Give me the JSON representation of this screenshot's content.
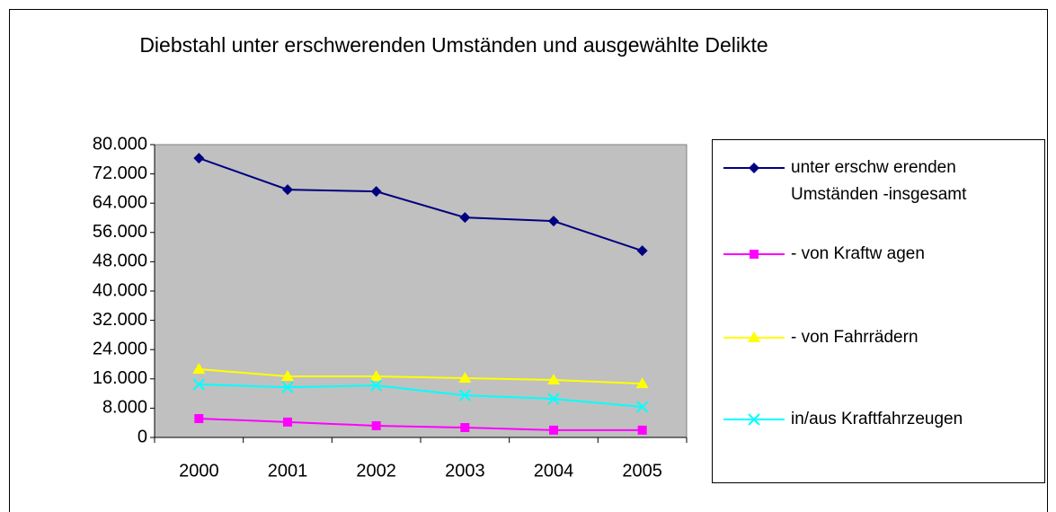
{
  "chart_data": {
    "type": "line",
    "title": "Diebstahl unter erschwerenden Umständen und ausgewählte Delikte",
    "categories": [
      "2000",
      "2001",
      "2002",
      "2003",
      "2004",
      "2005"
    ],
    "series": [
      {
        "name": "unter erschw erenden Umständen -insgesamt",
        "color": "#000080",
        "marker": "diamond",
        "values": [
          76300,
          67700,
          67200,
          60100,
          59100,
          51000
        ]
      },
      {
        "name": "- von Kraftw agen",
        "color": "#ff00ff",
        "marker": "square",
        "values": [
          5150,
          4200,
          3200,
          2700,
          2000,
          2000
        ]
      },
      {
        "name": "- von Fahrrädern",
        "color": "#ffff00",
        "marker": "triangle",
        "values": [
          18650,
          16700,
          16700,
          16200,
          15700,
          14700
        ]
      },
      {
        "name": "in/aus Kraftfahrzeugen",
        "color": "#00ffff",
        "marker": "x",
        "values": [
          14500,
          13700,
          14200,
          11500,
          10550,
          8350
        ]
      }
    ],
    "ylim": [
      0,
      80000
    ],
    "yticks": [
      0,
      {
        "value": 8000,
        "label": "8.000"
      },
      {
        "value": 16000,
        "label": "16.000"
      },
      {
        "value": 24000,
        "label": "24.000"
      },
      {
        "value": 32000,
        "label": "32.000"
      },
      {
        "value": 40000,
        "label": "40.000"
      },
      {
        "value": 48000,
        "label": "48.000"
      },
      {
        "value": 56000,
        "label": "56.000"
      },
      {
        "value": 64000,
        "label": "64.000"
      },
      {
        "value": 72000,
        "label": "72.000"
      },
      {
        "value": 80000,
        "label": "80.000"
      }
    ],
    "legend": "right"
  }
}
